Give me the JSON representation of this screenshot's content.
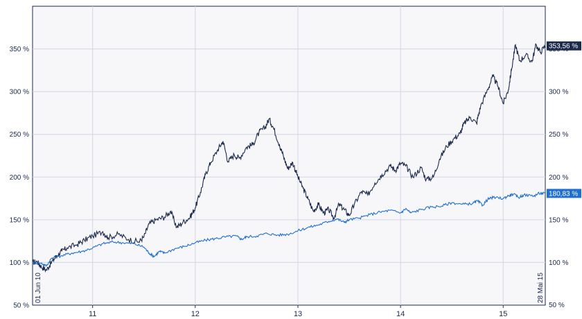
{
  "chart_data": {
    "type": "line",
    "ylim": [
      50,
      400
    ],
    "y_ticks": [
      50,
      100,
      150,
      200,
      250,
      300,
      350
    ],
    "y_tick_labels": [
      "50 %",
      "100 %",
      "150 %",
      "200 %",
      "250 %",
      "300 %",
      "350 %"
    ],
    "xlim": [
      2010.415,
      2015.41
    ],
    "x_ticks": [
      2011,
      2012,
      2013,
      2014,
      2015
    ],
    "x_tick_labels": [
      "11",
      "12",
      "13",
      "14",
      "15"
    ],
    "grid": true,
    "start_label": "01 Jun 10",
    "end_label": "28 Mai 15",
    "series": [
      {
        "color": "#1b2a4a",
        "last_value_label": "353,56 %",
        "points": [
          [
            2010.415,
            100
          ],
          [
            2010.46,
            101
          ],
          [
            2010.5,
            95
          ],
          [
            2010.55,
            91
          ],
          [
            2010.6,
            100
          ],
          [
            2010.65,
            108
          ],
          [
            2010.7,
            113
          ],
          [
            2010.75,
            117
          ],
          [
            2010.85,
            121
          ],
          [
            2010.92,
            126
          ],
          [
            2011.0,
            131
          ],
          [
            2011.1,
            136
          ],
          [
            2011.15,
            129
          ],
          [
            2011.25,
            133
          ],
          [
            2011.35,
            127
          ],
          [
            2011.45,
            124
          ],
          [
            2011.5,
            130
          ],
          [
            2011.55,
            145
          ],
          [
            2011.62,
            150
          ],
          [
            2011.7,
            153
          ],
          [
            2011.76,
            160
          ],
          [
            2011.82,
            141
          ],
          [
            2011.88,
            147
          ],
          [
            2011.95,
            153
          ],
          [
            2012.0,
            164
          ],
          [
            2012.05,
            182
          ],
          [
            2012.1,
            203
          ],
          [
            2012.15,
            217
          ],
          [
            2012.22,
            232
          ],
          [
            2012.27,
            242
          ],
          [
            2012.32,
            218
          ],
          [
            2012.38,
            226
          ],
          [
            2012.43,
            222
          ],
          [
            2012.5,
            235
          ],
          [
            2012.56,
            238
          ],
          [
            2012.62,
            252
          ],
          [
            2012.68,
            258
          ],
          [
            2012.72,
            268
          ],
          [
            2012.76,
            258
          ],
          [
            2012.82,
            238
          ],
          [
            2012.86,
            224
          ],
          [
            2012.9,
            210
          ],
          [
            2012.95,
            217
          ],
          [
            2013.0,
            200
          ],
          [
            2013.05,
            187
          ],
          [
            2013.1,
            174
          ],
          [
            2013.15,
            160
          ],
          [
            2013.2,
            168
          ],
          [
            2013.25,
            158
          ],
          [
            2013.3,
            162
          ],
          [
            2013.35,
            152
          ],
          [
            2013.4,
            168
          ],
          [
            2013.45,
            162
          ],
          [
            2013.5,
            155
          ],
          [
            2013.55,
            168
          ],
          [
            2013.62,
            183
          ],
          [
            2013.68,
            179
          ],
          [
            2013.75,
            193
          ],
          [
            2013.82,
            203
          ],
          [
            2013.9,
            213
          ],
          [
            2013.95,
            208
          ],
          [
            2014.0,
            216
          ],
          [
            2014.05,
            213
          ],
          [
            2014.12,
            200
          ],
          [
            2014.2,
            211
          ],
          [
            2014.25,
            197
          ],
          [
            2014.32,
            200
          ],
          [
            2014.38,
            221
          ],
          [
            2014.45,
            236
          ],
          [
            2014.52,
            245
          ],
          [
            2014.58,
            251
          ],
          [
            2014.62,
            263
          ],
          [
            2014.68,
            270
          ],
          [
            2014.74,
            263
          ],
          [
            2014.78,
            283
          ],
          [
            2014.85,
            303
          ],
          [
            2014.9,
            318
          ],
          [
            2014.95,
            306
          ],
          [
            2015.0,
            286
          ],
          [
            2015.05,
            302
          ],
          [
            2015.08,
            325
          ],
          [
            2015.12,
            355
          ],
          [
            2015.16,
            336
          ],
          [
            2015.22,
            343
          ],
          [
            2015.28,
            335
          ],
          [
            2015.32,
            355
          ],
          [
            2015.36,
            346
          ],
          [
            2015.41,
            353.56
          ]
        ]
      },
      {
        "color": "#1f6fd0",
        "last_value_label": "180,83 %",
        "points": [
          [
            2010.415,
            100
          ],
          [
            2010.5,
            99
          ],
          [
            2010.55,
            96
          ],
          [
            2010.6,
            105
          ],
          [
            2010.7,
            108
          ],
          [
            2010.8,
            111
          ],
          [
            2010.9,
            113
          ],
          [
            2011.0,
            117
          ],
          [
            2011.1,
            122
          ],
          [
            2011.2,
            124
          ],
          [
            2011.3,
            123
          ],
          [
            2011.4,
            122
          ],
          [
            2011.5,
            118
          ],
          [
            2011.55,
            111
          ],
          [
            2011.6,
            107
          ],
          [
            2011.65,
            113
          ],
          [
            2011.7,
            111
          ],
          [
            2011.8,
            116
          ],
          [
            2011.9,
            119
          ],
          [
            2012.0,
            123
          ],
          [
            2012.1,
            126
          ],
          [
            2012.2,
            128
          ],
          [
            2012.3,
            130
          ],
          [
            2012.4,
            131
          ],
          [
            2012.45,
            127
          ],
          [
            2012.5,
            130
          ],
          [
            2012.6,
            131
          ],
          [
            2012.7,
            134
          ],
          [
            2012.8,
            132
          ],
          [
            2012.9,
            133
          ],
          [
            2013.0,
            137
          ],
          [
            2013.1,
            141
          ],
          [
            2013.2,
            144
          ],
          [
            2013.3,
            148
          ],
          [
            2013.38,
            151
          ],
          [
            2013.45,
            147
          ],
          [
            2013.5,
            150
          ],
          [
            2013.6,
            152
          ],
          [
            2013.7,
            156
          ],
          [
            2013.8,
            159
          ],
          [
            2013.9,
            161
          ],
          [
            2014.0,
            158
          ],
          [
            2014.05,
            163
          ],
          [
            2014.1,
            158
          ],
          [
            2014.2,
            162
          ],
          [
            2014.3,
            165
          ],
          [
            2014.4,
            166
          ],
          [
            2014.5,
            170
          ],
          [
            2014.6,
            168
          ],
          [
            2014.7,
            169
          ],
          [
            2014.75,
            172
          ],
          [
            2014.8,
            167
          ],
          [
            2014.85,
            174
          ],
          [
            2014.9,
            176
          ],
          [
            2015.0,
            175
          ],
          [
            2015.05,
            178
          ],
          [
            2015.1,
            180
          ],
          [
            2015.15,
            176
          ],
          [
            2015.2,
            179
          ],
          [
            2015.3,
            178
          ],
          [
            2015.35,
            181
          ],
          [
            2015.41,
            180.83
          ]
        ]
      }
    ]
  }
}
